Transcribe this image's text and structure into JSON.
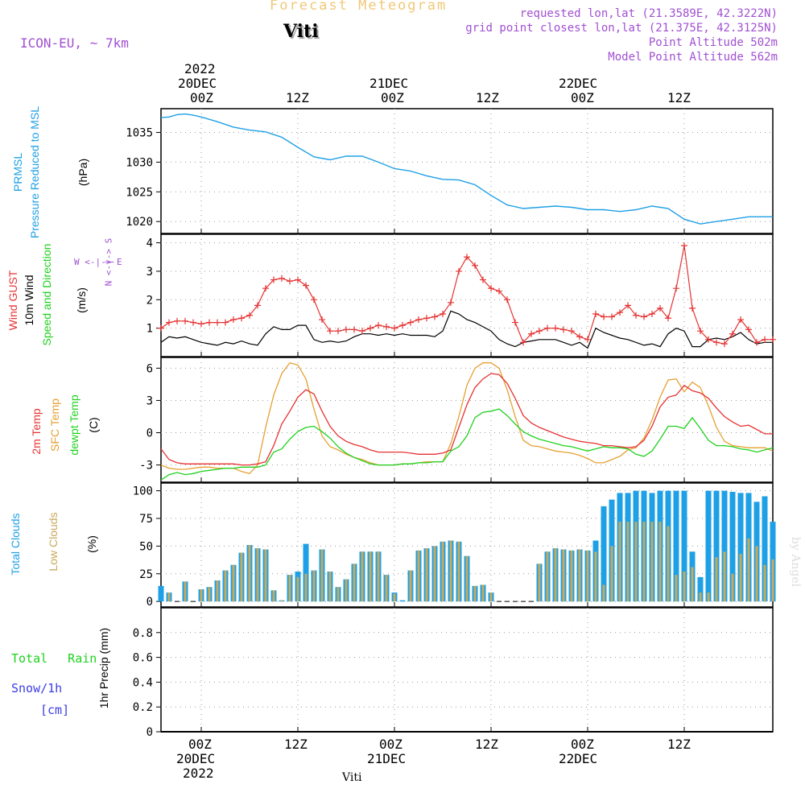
{
  "header": {
    "title": "Forecast Meteogram",
    "station": "Viti",
    "model": "ICON-EU, ~ 7km",
    "requested": "requested lon,lat (21.3589E, 42.3222N)",
    "gridpoint": "grid point closest lon,lat (21.375E, 42.3125N)",
    "point_alt": "Point Altitude 502m",
    "model_alt": "Model Point Altitude 562m",
    "footer_station": "Viti",
    "watermark": "by Angel"
  },
  "time_axis": {
    "ticks": [
      "00Z",
      "12Z",
      "00Z",
      "12Z",
      "00Z",
      "12Z"
    ],
    "dates": [
      "20DEC",
      "21DEC",
      "22DEC"
    ],
    "year": "2022",
    "hours_start_offset": -5,
    "hours_end_offset": 71
  },
  "labels": {
    "p1": {
      "name": "PRMSL",
      "desc": "Pressure Reduced to MSL",
      "unit": "(hPa)"
    },
    "p2": {
      "gust": "Wind GUST",
      "wind": "10m Wind",
      "dir": "Speed and Direction",
      "unit": "(m/s)",
      "compass_ns": "N <-|-> S",
      "compass_we": "W <-|-> E"
    },
    "p3": {
      "t2m": "2m Temp",
      "sfc": "SFC Temp",
      "dew": "dewpt Temp",
      "unit": "(C)"
    },
    "p4": {
      "total": "Total Clouds",
      "low": "Low Clouds",
      "unit": "(%)"
    },
    "p5": {
      "rain": "Total Rain",
      "snow": "Snow/1h",
      "snow_unit": "[cm]",
      "unit": "1hr Precip (mm)"
    }
  },
  "colors": {
    "pressure": "#1ea0e6",
    "gust": "#e63232",
    "wind": "#000000",
    "t2m": "#e63232",
    "sfc": "#e6a032",
    "dew": "#1ed21e",
    "total_cloud": "#1ea0e6",
    "low_cloud": "#c8aa5a",
    "purple": "#a050d2",
    "title": "#f0c878"
  },
  "chart_data": [
    {
      "type": "line",
      "title": "PRMSL Pressure Reduced to MSL",
      "ylabel": "hPa",
      "ylim": [
        1018,
        1039
      ],
      "yticks": [
        "1020",
        "1025",
        "1030",
        "1035"
      ],
      "hours": [
        -5,
        -4,
        -3,
        -2,
        -1,
        0,
        2,
        4,
        6,
        8,
        10,
        12,
        14,
        16,
        18,
        20,
        22,
        24,
        26,
        28,
        30,
        32,
        34,
        36,
        38,
        40,
        42,
        44,
        46,
        48,
        50,
        52,
        54,
        56,
        58,
        60,
        62,
        64,
        66,
        68,
        71
      ],
      "values": [
        1037.5,
        1037.6,
        1038.0,
        1038.1,
        1037.9,
        1037.6,
        1036.8,
        1035.9,
        1035.4,
        1035.1,
        1034.2,
        1032.5,
        1030.9,
        1030.4,
        1031.0,
        1031.0,
        1030.0,
        1028.9,
        1028.5,
        1027.7,
        1027.1,
        1027.0,
        1026.2,
        1024.4,
        1022.8,
        1022.2,
        1022.4,
        1022.6,
        1022.4,
        1022.0,
        1022.0,
        1021.7,
        1022.0,
        1022.6,
        1022.2,
        1020.4,
        1019.6,
        1020.0,
        1020.4,
        1020.8,
        1020.8
      ]
    },
    {
      "type": "line",
      "title": "Wind GUST / 10m Wind",
      "ylabel": "m/s",
      "ylim": [
        0,
        4.3
      ],
      "yticks": [
        "1",
        "2",
        "3",
        "4"
      ],
      "hours": [
        -5,
        -4,
        -3,
        -2,
        -1,
        0,
        1,
        2,
        3,
        4,
        5,
        6,
        7,
        8,
        9,
        10,
        11,
        12,
        13,
        14,
        15,
        16,
        17,
        18,
        19,
        20,
        21,
        22,
        23,
        24,
        25,
        26,
        27,
        28,
        29,
        30,
        31,
        32,
        33,
        34,
        35,
        36,
        37,
        38,
        39,
        40,
        41,
        42,
        43,
        44,
        45,
        46,
        47,
        48,
        49,
        50,
        51,
        52,
        53,
        54,
        55,
        56,
        57,
        58,
        59,
        60,
        61,
        62,
        63,
        64,
        65,
        66,
        67,
        68,
        69,
        70,
        71
      ],
      "series": [
        {
          "name": "Wind GUST",
          "values": [
            1.0,
            1.2,
            1.25,
            1.25,
            1.2,
            1.15,
            1.2,
            1.2,
            1.2,
            1.3,
            1.35,
            1.45,
            1.8,
            2.4,
            2.7,
            2.75,
            2.65,
            2.7,
            2.5,
            2.0,
            1.3,
            0.9,
            0.9,
            0.95,
            0.95,
            0.9,
            1.0,
            1.1,
            1.05,
            1.0,
            1.1,
            1.2,
            1.3,
            1.35,
            1.4,
            1.5,
            1.9,
            3.0,
            3.5,
            3.2,
            2.7,
            2.4,
            2.3,
            2.0,
            1.2,
            0.5,
            0.8,
            0.9,
            1.0,
            1.0,
            0.95,
            0.9,
            0.7,
            0.6,
            1.5,
            1.4,
            1.4,
            1.55,
            1.8,
            1.45,
            1.4,
            1.5,
            1.7,
            1.35,
            2.4,
            3.9,
            1.7,
            0.9,
            0.6,
            0.5,
            0.45,
            0.8,
            1.3,
            0.95,
            0.5,
            0.6,
            0.6
          ]
        },
        {
          "name": "10m Wind",
          "values": [
            0.5,
            0.7,
            0.65,
            0.7,
            0.6,
            0.5,
            0.45,
            0.4,
            0.5,
            0.45,
            0.55,
            0.45,
            0.4,
            0.8,
            1.05,
            0.95,
            0.95,
            1.1,
            1.1,
            0.6,
            0.5,
            0.55,
            0.5,
            0.55,
            0.7,
            0.8,
            0.8,
            0.75,
            0.8,
            0.75,
            0.8,
            0.75,
            0.75,
            0.75,
            0.7,
            0.9,
            1.6,
            1.5,
            1.3,
            1.2,
            1.05,
            0.9,
            0.6,
            0.45,
            0.35,
            0.5,
            0.55,
            0.6,
            0.6,
            0.6,
            0.5,
            0.4,
            0.5,
            0.3,
            1.0,
            0.85,
            0.75,
            0.65,
            0.6,
            0.5,
            0.4,
            0.45,
            0.35,
            0.8,
            1.0,
            0.9,
            0.35,
            0.35,
            0.6,
            0.65,
            0.6,
            0.7,
            0.85,
            0.6,
            0.45,
            0.5,
            0.5
          ]
        }
      ]
    },
    {
      "type": "line",
      "title": "2m Temp / SFC Temp / dewpt Temp",
      "ylabel": "C",
      "ylim": [
        -4.6,
        7.0
      ],
      "yticks": [
        "-3",
        "0",
        "3",
        "6"
      ],
      "hours": [
        -5,
        -4,
        -3,
        -2,
        -1,
        0,
        1,
        2,
        3,
        4,
        5,
        6,
        7,
        8,
        9,
        10,
        11,
        12,
        13,
        14,
        15,
        16,
        17,
        18,
        19,
        20,
        21,
        22,
        23,
        24,
        25,
        26,
        27,
        28,
        29,
        30,
        31,
        32,
        33,
        34,
        35,
        36,
        37,
        38,
        39,
        40,
        41,
        42,
        43,
        44,
        45,
        46,
        47,
        48,
        49,
        50,
        51,
        52,
        53,
        54,
        55,
        56,
        57,
        58,
        59,
        60,
        61,
        62,
        63,
        64,
        65,
        66,
        67,
        68,
        69,
        70,
        71
      ],
      "series": [
        {
          "name": "2m Temp",
          "values": [
            -1.5,
            -2.5,
            -2.8,
            -2.9,
            -2.9,
            -2.9,
            -2.9,
            -2.9,
            -2.9,
            -2.9,
            -3.0,
            -3.0,
            -2.9,
            -2.7,
            -1.2,
            0.8,
            2.0,
            3.3,
            4.0,
            3.6,
            2.0,
            0.6,
            -0.3,
            -0.8,
            -1.1,
            -1.3,
            -1.6,
            -1.8,
            -1.8,
            -1.8,
            -1.8,
            -1.9,
            -2.0,
            -2.0,
            -2.0,
            -1.9,
            -1.6,
            0.5,
            2.6,
            4.2,
            5.0,
            5.5,
            5.4,
            4.6,
            3.2,
            1.6,
            0.9,
            0.5,
            0.2,
            -0.1,
            -0.4,
            -0.6,
            -0.8,
            -0.9,
            -1.0,
            -1.2,
            -1.2,
            -1.3,
            -1.4,
            -1.3,
            -0.7,
            0.6,
            2.4,
            3.3,
            3.5,
            4.4,
            3.9,
            3.7,
            3.2,
            2.3,
            1.5,
            1.0,
            0.6,
            0.7,
            0.3,
            -0.1,
            -0.1
          ]
        },
        {
          "name": "SFC Temp",
          "values": [
            -3.0,
            -3.3,
            -3.4,
            -3.4,
            -3.3,
            -3.2,
            -3.2,
            -3.3,
            -3.3,
            -3.3,
            -3.6,
            -3.8,
            -3.0,
            0.5,
            3.5,
            5.5,
            6.5,
            6.3,
            5.0,
            2.2,
            -0.3,
            -1.3,
            -1.6,
            -2.0,
            -2.3,
            -2.5,
            -2.8,
            -3.0,
            -3.0,
            -3.0,
            -2.9,
            -2.9,
            -2.8,
            -2.7,
            -2.7,
            -2.7,
            -1.0,
            1.5,
            4.4,
            6.0,
            6.5,
            6.5,
            6.0,
            4.0,
            1.5,
            -0.7,
            -1.2,
            -1.3,
            -1.5,
            -1.7,
            -1.8,
            -1.9,
            -2.1,
            -2.4,
            -2.8,
            -2.8,
            -2.5,
            -2.2,
            -1.6,
            -1.4,
            -0.5,
            1.2,
            3.3,
            4.9,
            5.0,
            3.8,
            4.7,
            4.2,
            2.5,
            0.5,
            -0.8,
            -1.2,
            -1.3,
            -1.4,
            -1.4,
            -1.4,
            -1.7
          ]
        },
        {
          "name": "dewpt Temp",
          "values": [
            -4.4,
            -3.9,
            -3.7,
            -3.9,
            -3.8,
            -3.6,
            -3.5,
            -3.4,
            -3.3,
            -3.3,
            -3.2,
            -3.2,
            -3.2,
            -3.0,
            -1.8,
            -1.5,
            -0.6,
            0.1,
            0.5,
            0.6,
            0.1,
            -0.5,
            -1.3,
            -1.9,
            -2.3,
            -2.6,
            -2.9,
            -3.0,
            -3.0,
            -3.0,
            -2.9,
            -2.9,
            -2.8,
            -2.8,
            -2.7,
            -2.7,
            -1.7,
            -1.3,
            -0.3,
            1.4,
            1.9,
            2.0,
            2.2,
            1.6,
            0.8,
            0.1,
            -0.3,
            -0.6,
            -0.8,
            -1.0,
            -1.2,
            -1.3,
            -1.5,
            -1.7,
            -1.5,
            -1.3,
            -1.4,
            -1.4,
            -1.5,
            -2.0,
            -2.2,
            -1.7,
            -0.6,
            0.6,
            0.6,
            0.4,
            1.4,
            0.4,
            -0.7,
            -1.2,
            -1.2,
            -1.3,
            -1.5,
            -1.6,
            -1.8,
            -1.6,
            -1.4
          ]
        }
      ]
    },
    {
      "type": "bar",
      "title": "Total Clouds / Low Clouds",
      "ylabel": "%",
      "ylim": [
        -5,
        107
      ],
      "yticks": [
        "0",
        "25",
        "50",
        "75",
        "100"
      ],
      "hours": [
        -5,
        -4,
        -3,
        -2,
        -1,
        0,
        1,
        2,
        3,
        4,
        5,
        6,
        7,
        8,
        9,
        10,
        11,
        12,
        13,
        14,
        15,
        16,
        17,
        18,
        19,
        20,
        21,
        22,
        23,
        24,
        25,
        26,
        27,
        28,
        29,
        30,
        31,
        32,
        33,
        34,
        35,
        36,
        37,
        38,
        39,
        40,
        41,
        42,
        43,
        44,
        45,
        46,
        47,
        48,
        49,
        50,
        51,
        52,
        53,
        54,
        55,
        56,
        57,
        58,
        59,
        60,
        61,
        62,
        63,
        64,
        65,
        66,
        67,
        68,
        69,
        70,
        71
      ],
      "series": [
        {
          "name": "Total Clouds",
          "values": [
            14,
            8,
            0,
            18,
            0,
            11,
            13,
            19,
            28,
            33,
            44,
            51,
            48,
            47,
            10,
            1,
            24,
            27,
            52,
            28,
            47,
            27,
            13,
            20,
            34,
            45,
            45,
            45,
            24,
            8,
            1,
            28,
            46,
            48,
            50,
            54,
            55,
            54,
            41,
            14,
            15,
            8,
            0,
            0,
            0,
            0,
            0,
            34,
            45,
            48,
            47,
            46,
            47,
            46,
            55,
            86,
            92,
            98,
            98,
            100,
            100,
            98,
            100,
            100,
            100,
            100,
            45,
            22,
            100,
            100,
            100,
            99,
            98,
            98,
            90,
            95,
            72
          ]
        },
        {
          "name": "Low Clouds",
          "values": [
            0,
            8,
            0,
            18,
            0,
            11,
            13,
            19,
            28,
            33,
            44,
            51,
            48,
            47,
            10,
            1,
            24,
            22,
            25,
            28,
            47,
            27,
            13,
            20,
            34,
            45,
            45,
            45,
            24,
            7,
            0,
            28,
            46,
            48,
            50,
            54,
            55,
            54,
            41,
            14,
            15,
            8,
            0,
            0,
            0,
            0,
            0,
            34,
            45,
            48,
            47,
            46,
            47,
            46,
            45,
            15,
            50,
            72,
            72,
            72,
            72,
            72,
            72,
            68,
            24,
            27,
            31,
            8,
            8,
            40,
            45,
            25,
            43,
            57,
            50,
            33,
            38
          ]
        }
      ]
    },
    {
      "type": "line",
      "title": "1hr Precip (mm)",
      "ylabel": "mm",
      "ylim": [
        0,
        1.0
      ],
      "yticks": [
        "0",
        "0.2",
        "0.4",
        "0.6",
        "0.8"
      ],
      "hours": [
        -5,
        71
      ],
      "series": [
        {
          "name": "Total Rain",
          "values": [
            0,
            0
          ]
        },
        {
          "name": "Snow/1h",
          "values": [
            0,
            0
          ]
        }
      ]
    }
  ]
}
